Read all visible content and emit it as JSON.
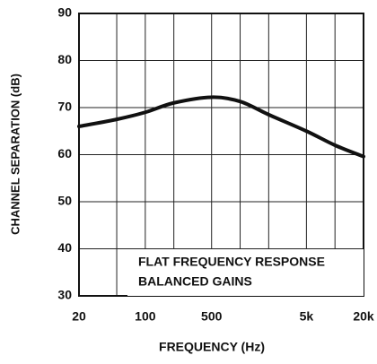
{
  "chart_data": {
    "type": "line",
    "xlabel": "FREQUENCY (Hz)",
    "ylabel": "CHANNEL SEPARATION (dB)",
    "annotation": [
      "FLAT FREQUENCY RESPONSE",
      "BALANCED GAINS"
    ],
    "xscale": "log",
    "grid": true,
    "color": "#111111",
    "xlim": [
      20,
      20000
    ],
    "ylim": [
      30,
      90
    ],
    "xticks": [
      20,
      100,
      500,
      {
        "value": 5000,
        "label": "5k"
      },
      {
        "value": 20000,
        "label": "20k"
      }
    ],
    "xgrid_minor": [
      50,
      200,
      1000,
      2000,
      10000
    ],
    "yticks": [
      30,
      40,
      50,
      60,
      70,
      80,
      90
    ],
    "series": [
      {
        "name": "channel separation",
        "color": "#111111",
        "x": [
          20,
          50,
          100,
          200,
          500,
          1000,
          2000,
          5000,
          10000,
          20000
        ],
        "values": [
          66,
          67.5,
          69,
          71,
          72.2,
          71.3,
          68.5,
          65,
          62,
          59.6
        ]
      }
    ]
  }
}
